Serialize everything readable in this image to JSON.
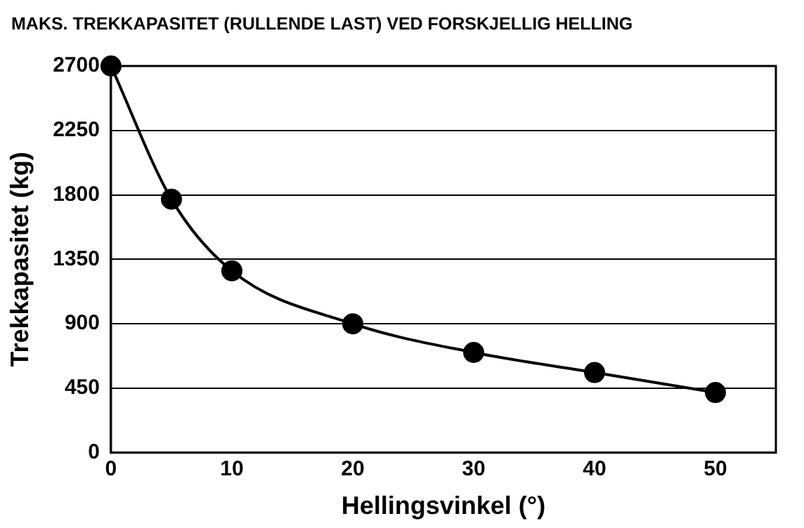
{
  "chart_data": {
    "type": "line",
    "title": "MAKS. TREKKAPASITET (RULLENDE LAST) VED FORSKJELLIG HELLING",
    "xlabel": "Hellingsvinkel (°)",
    "ylabel": "Trekkapasitet (kg)",
    "x": [
      0,
      5,
      10,
      20,
      30,
      40,
      50
    ],
    "series": [
      {
        "color": "#000000",
        "values": [
          2700,
          1770,
          1270,
          900,
          700,
          560,
          420
        ]
      }
    ],
    "xlim": [
      0,
      55
    ],
    "xticks": [
      0,
      10,
      20,
      30,
      40,
      50
    ],
    "ylim": [
      0,
      2700
    ],
    "yticks": [
      0,
      450,
      900,
      1350,
      1800,
      2250,
      2700
    ],
    "grid": "y",
    "legend": false,
    "marker": "circle",
    "line_style": "solid"
  }
}
